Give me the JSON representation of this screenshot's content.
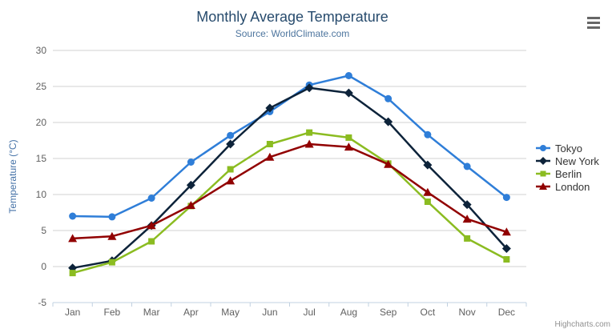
{
  "chart_data": {
    "type": "line",
    "title": "Monthly Average Temperature",
    "subtitle": "Source: WorldClimate.com",
    "credit": "Highcharts.com",
    "categories": [
      "Jan",
      "Feb",
      "Mar",
      "Apr",
      "May",
      "Jun",
      "Jul",
      "Aug",
      "Sep",
      "Oct",
      "Nov",
      "Dec"
    ],
    "xlabel": "",
    "ylabel": "Temperature (°C)",
    "ylim": [
      -5,
      30
    ],
    "yticks": [
      -5,
      0,
      5,
      10,
      15,
      20,
      25,
      30
    ],
    "grid": true,
    "legend_position": "right",
    "series": [
      {
        "name": "Tokyo",
        "color": "#2f7ed8",
        "marker": "circle",
        "values": [
          7.0,
          6.9,
          9.5,
          14.5,
          18.2,
          21.5,
          25.2,
          26.5,
          23.3,
          18.3,
          13.9,
          9.6
        ]
      },
      {
        "name": "New York",
        "color": "#0d233a",
        "marker": "diamond",
        "values": [
          -0.2,
          0.8,
          5.7,
          11.3,
          17.0,
          22.0,
          24.8,
          24.1,
          20.1,
          14.1,
          8.6,
          2.5
        ]
      },
      {
        "name": "Berlin",
        "color": "#8bbc21",
        "marker": "square",
        "values": [
          -0.9,
          0.6,
          3.5,
          8.4,
          13.5,
          17.0,
          18.6,
          17.9,
          14.3,
          9.0,
          3.9,
          1.0
        ]
      },
      {
        "name": "London",
        "color": "#910000",
        "marker": "triangle",
        "values": [
          3.9,
          4.2,
          5.7,
          8.5,
          11.9,
          15.2,
          17.0,
          16.6,
          14.2,
          10.3,
          6.6,
          4.8
        ]
      }
    ],
    "colors": {
      "title": "#274b6d",
      "subtitle": "#4d759e",
      "y_axis_title": "#4572a7",
      "axis_labels": "#606060",
      "grid_line": "#d0d0d0",
      "axis_line": "#c0d0e0",
      "legend_text": "#333333",
      "credit_text": "#909090",
      "menu_icon": "#666666",
      "background": "#ffffff"
    }
  }
}
